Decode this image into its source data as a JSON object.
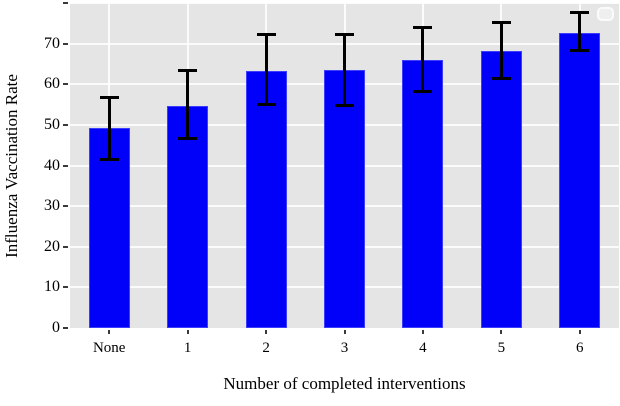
{
  "chart_data": {
    "type": "bar",
    "title": "",
    "xlabel": "Number of completed interventions",
    "ylabel": "Influenza Vaccination Rate",
    "categories": [
      "None",
      "1",
      "2",
      "3",
      "4",
      "5",
      "6"
    ],
    "series": [
      {
        "name": "Influenza Vaccination Rate",
        "values": [
          49.2,
          54.6,
          63.2,
          63.5,
          66.0,
          68.1,
          72.7
        ],
        "ci_low": [
          41.6,
          46.6,
          54.9,
          54.7,
          58.2,
          61.5,
          68.3
        ],
        "ci_high": [
          56.7,
          63.3,
          72.2,
          72.3,
          74.0,
          75.3,
          77.6
        ]
      }
    ],
    "ylim": [
      0,
      80
    ],
    "yticks": [
      0,
      10,
      20,
      30,
      40,
      50,
      60,
      70,
      80
    ],
    "ytick_labels": [
      "0",
      "10",
      "20",
      "30",
      "40",
      "50",
      "60",
      "70",
      ""
    ],
    "grid": true,
    "legend": {
      "visible": true,
      "entries": [],
      "position": "top-right"
    },
    "colors": {
      "bar_fill": "#0101fa",
      "bar_edge": "#3d3dff",
      "error_bar": "#000000",
      "plot_background": "#e5e5e5",
      "gridline": "#f5f5f5",
      "text": "#000000"
    }
  }
}
